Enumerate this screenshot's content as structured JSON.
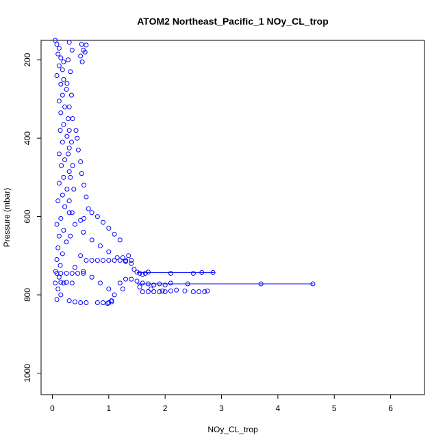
{
  "chart_data": {
    "type": "scatter",
    "title": "ATOM2 Northeast_Pacific_1 NOy_CL_trop",
    "xlabel": "NOy_CL_trop",
    "ylabel": "Pressure (mbar)",
    "xlim": [
      -0.2,
      6.6
    ],
    "ylim": [
      1055,
      150
    ],
    "y_reversed": true,
    "x_ticks": [
      0,
      1,
      2,
      3,
      4,
      5,
      6
    ],
    "y_ticks": [
      200,
      400,
      600,
      800,
      1000
    ],
    "grid": false,
    "legend": "none",
    "marker": "open-circle",
    "color": "#0000ff",
    "series": [
      {
        "points": [
          [
            0.05,
            150
          ],
          [
            0.08,
            160
          ],
          [
            0.12,
            170
          ],
          [
            0.1,
            185
          ],
          [
            0.15,
            195
          ],
          [
            0.2,
            205
          ],
          [
            0.12,
            215
          ],
          [
            0.18,
            225
          ],
          [
            0.08,
            240
          ],
          [
            0.2,
            250
          ],
          [
            0.15,
            262
          ],
          [
            0.25,
            275
          ],
          [
            0.18,
            290
          ],
          [
            0.12,
            305
          ],
          [
            0.22,
            320
          ],
          [
            0.15,
            335
          ],
          [
            0.28,
            350
          ],
          [
            0.2,
            365
          ],
          [
            0.14,
            380
          ],
          [
            0.26,
            395
          ],
          [
            0.18,
            410
          ],
          [
            0.3,
            425
          ],
          [
            0.12,
            440
          ],
          [
            0.22,
            455
          ],
          [
            0.16,
            470
          ],
          [
            0.3,
            485
          ],
          [
            0.2,
            500
          ],
          [
            0.12,
            515
          ],
          [
            0.26,
            530
          ],
          [
            0.18,
            545
          ],
          [
            0.1,
            560
          ],
          [
            0.22,
            575
          ],
          [
            0.3,
            590
          ],
          [
            0.15,
            605
          ],
          [
            0.08,
            620
          ],
          [
            0.2,
            635
          ],
          [
            0.12,
            650
          ],
          [
            0.25,
            665
          ],
          [
            0.1,
            680
          ],
          [
            0.18,
            695
          ],
          [
            0.08,
            710
          ],
          [
            0.14,
            725
          ],
          [
            0.06,
            740
          ],
          [
            0.12,
            755
          ],
          [
            0.2,
            770
          ],
          [
            0.1,
            785
          ],
          [
            0.15,
            800
          ],
          [
            0.08,
            812
          ],
          [
            0.3,
            155
          ],
          [
            0.35,
            175
          ],
          [
            0.28,
            200
          ],
          [
            0.32,
            230
          ],
          [
            0.26,
            260
          ],
          [
            0.34,
            290
          ],
          [
            0.3,
            320
          ],
          [
            0.36,
            350
          ],
          [
            0.3,
            380
          ],
          [
            0.34,
            410
          ],
          [
            0.28,
            440
          ],
          [
            0.36,
            470
          ],
          [
            0.32,
            500
          ],
          [
            0.38,
            530
          ],
          [
            0.3,
            560
          ],
          [
            0.35,
            590
          ],
          [
            0.4,
            620
          ],
          [
            0.32,
            650
          ],
          [
            0.52,
            160
          ],
          [
            0.55,
            175
          ],
          [
            0.5,
            190
          ],
          [
            0.53,
            205
          ],
          [
            0.6,
            162
          ],
          [
            0.58,
            180
          ],
          [
            0.42,
            380
          ],
          [
            0.44,
            400
          ],
          [
            0.46,
            430
          ],
          [
            0.5,
            460
          ],
          [
            0.52,
            490
          ],
          [
            0.56,
            520
          ],
          [
            0.6,
            550
          ],
          [
            0.64,
            580
          ],
          [
            0.5,
            610
          ],
          [
            0.56,
            605
          ],
          [
            0.7,
            590
          ],
          [
            0.8,
            600
          ],
          [
            0.9,
            615
          ],
          [
            1.0,
            630
          ],
          [
            1.1,
            645
          ],
          [
            1.2,
            660
          ],
          [
            0.55,
            640
          ],
          [
            0.7,
            660
          ],
          [
            0.85,
            675
          ],
          [
            1.0,
            690
          ],
          [
            1.15,
            705
          ],
          [
            1.3,
            715
          ],
          [
            1.4,
            720
          ],
          [
            1.35,
            700
          ],
          [
            1.25,
            705
          ],
          [
            0.5,
            700
          ],
          [
            0.6,
            712
          ],
          [
            0.7,
            712
          ],
          [
            0.8,
            712
          ],
          [
            0.9,
            712
          ],
          [
            1.0,
            712
          ],
          [
            1.1,
            712
          ],
          [
            1.2,
            712
          ],
          [
            1.3,
            712
          ],
          [
            1.4,
            712
          ],
          [
            0.4,
            730
          ],
          [
            0.55,
            740
          ],
          [
            0.7,
            755
          ],
          [
            0.85,
            770
          ],
          [
            1.0,
            785
          ],
          [
            1.1,
            800
          ],
          [
            1.05,
            815
          ],
          [
            0.9,
            820
          ],
          [
            0.8,
            820
          ],
          [
            0.6,
            820
          ],
          [
            0.5,
            820
          ],
          [
            0.4,
            818
          ],
          [
            0.3,
            815
          ],
          [
            1.0,
            820
          ],
          [
            1.05,
            818
          ],
          [
            0.98,
            822
          ],
          [
            1.45,
            735
          ],
          [
            1.5,
            742
          ],
          [
            1.55,
            745
          ],
          [
            1.6,
            748
          ],
          [
            1.65,
            745
          ],
          [
            1.7,
            742
          ],
          [
            2.1,
            745
          ],
          [
            2.5,
            745
          ],
          [
            2.65,
            743
          ],
          [
            2.85,
            743
          ],
          [
            1.4,
            760
          ],
          [
            1.5,
            765
          ],
          [
            1.6,
            770
          ],
          [
            1.7,
            772
          ],
          [
            1.8,
            775
          ],
          [
            1.9,
            772
          ],
          [
            2.0,
            775
          ],
          [
            2.1,
            770
          ],
          [
            2.4,
            772
          ],
          [
            3.7,
            772
          ],
          [
            4.62,
            772
          ],
          [
            1.6,
            792
          ],
          [
            1.7,
            792
          ],
          [
            1.8,
            792
          ],
          [
            1.9,
            792
          ],
          [
            2.0,
            792
          ],
          [
            2.1,
            790
          ],
          [
            2.2,
            788
          ],
          [
            2.35,
            790
          ],
          [
            2.5,
            792
          ],
          [
            2.6,
            792
          ],
          [
            2.7,
            792
          ],
          [
            2.75,
            790
          ],
          [
            1.3,
            760
          ],
          [
            1.2,
            770
          ],
          [
            1.25,
            785
          ],
          [
            1.55,
            780
          ],
          [
            1.75,
            785
          ],
          [
            1.95,
            790
          ],
          [
            0.08,
            745
          ],
          [
            0.15,
            745
          ],
          [
            0.25,
            745
          ],
          [
            0.35,
            745
          ],
          [
            0.45,
            745
          ],
          [
            0.55,
            745
          ],
          [
            0.05,
            770
          ],
          [
            0.15,
            768
          ],
          [
            0.25,
            768
          ],
          [
            0.35,
            770
          ]
        ],
        "lines": [
          [
            [
              1.5,
              743
            ],
            [
              2.88,
              743
            ]
          ],
          [
            [
              1.5,
              772
            ],
            [
              4.62,
              772
            ]
          ]
        ]
      }
    ]
  }
}
